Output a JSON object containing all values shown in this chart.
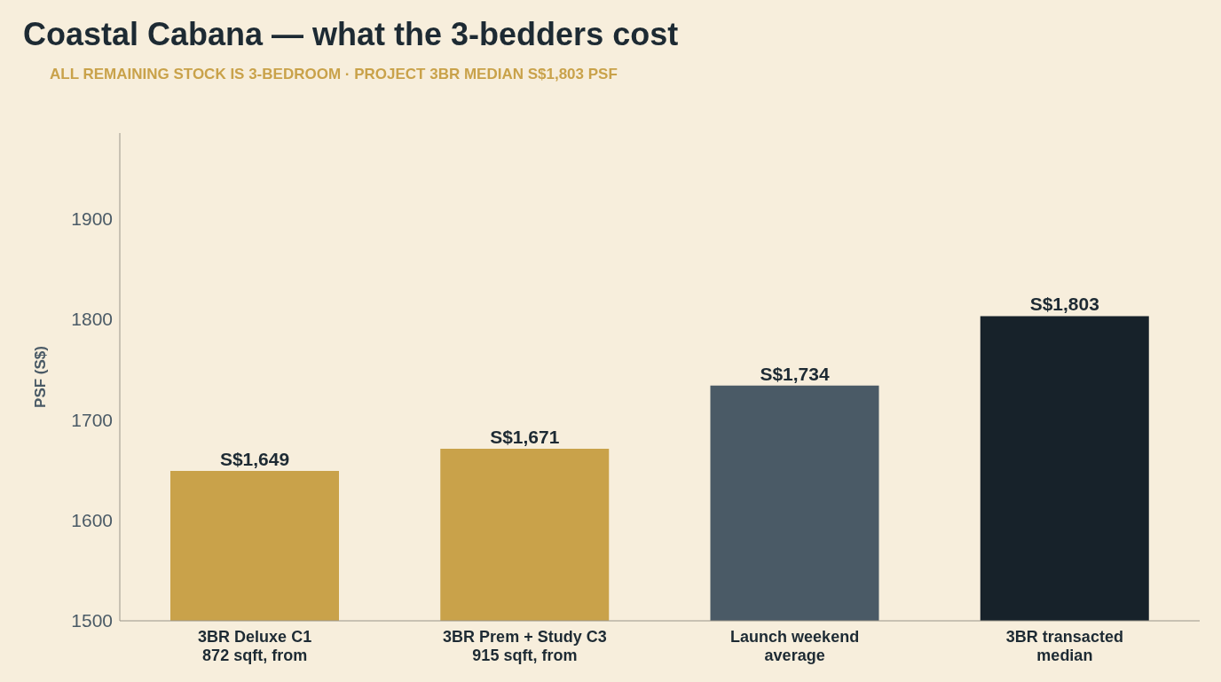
{
  "chart_data": {
    "type": "bar",
    "title": "Coastal Cabana — what the 3-bedders cost",
    "subtitle": "ALL REMAINING STOCK IS 3-BEDROOM · PROJECT 3BR MEDIAN S$1,803 PSF",
    "ylabel": "PSF (S$)",
    "categories": [
      "3BR Deluxe C1\n872 sqft, from",
      "3BR Prem + Study C3\n915 sqft, from",
      "Launch weekend\naverage",
      "3BR transacted\nmedian"
    ],
    "values": [
      1649,
      1671,
      1734,
      1803
    ],
    "colors": [
      "#c9a24a",
      "#c9a24a",
      "#4a5a66",
      "#17222a"
    ],
    "value_labels": [
      "S$1,649",
      "S$1,671",
      "S$1,734",
      "S$1,803"
    ],
    "ylim": [
      1500,
      1985
    ],
    "yticks": [
      1500,
      1600,
      1700,
      1800,
      1900
    ],
    "grid": false,
    "legend": false
  }
}
